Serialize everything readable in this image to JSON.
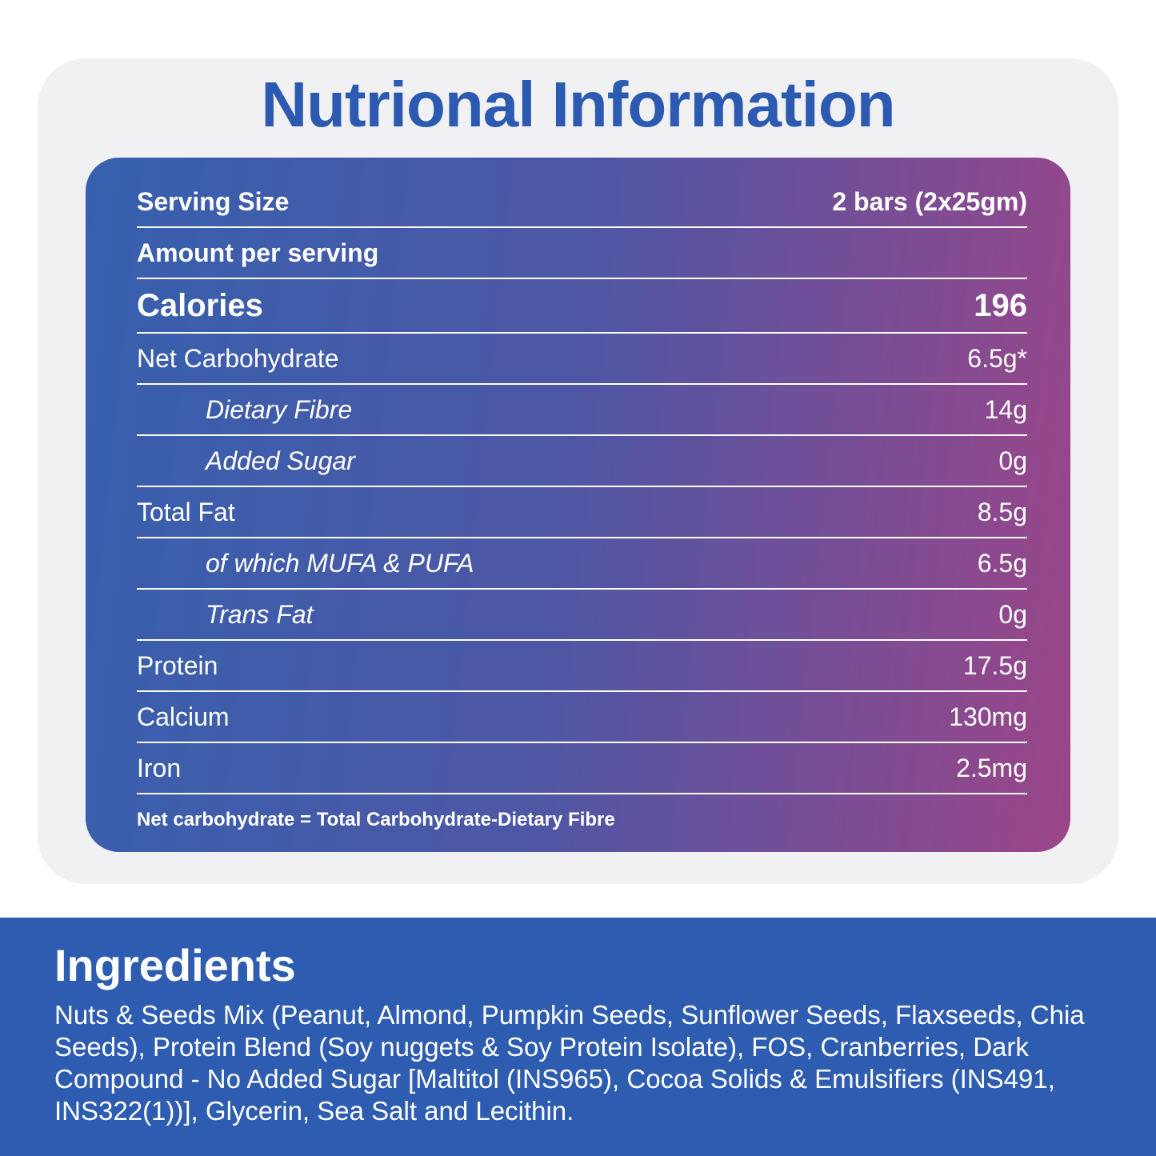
{
  "colors": {
    "page_bg": "#ffffff",
    "card_bg": "#f1f1f3",
    "title_blue": "#2d5ab1",
    "panel_gradient_start": "#3660ae",
    "panel_gradient_end": "#9c4588",
    "ingredients_band_blue": "#2e5cb0",
    "panel_text": "#ffffff"
  },
  "title": "Nutrional Information",
  "nutrition": {
    "rows": [
      {
        "label": "Serving Size",
        "value": "2 bars (2x25gm)"
      },
      {
        "label": "Amount per serving",
        "value": ""
      },
      {
        "label": "Calories",
        "value": "196"
      },
      {
        "label": "Net Carbohydrate",
        "value": "6.5g*"
      },
      {
        "label": "Dietary Fibre",
        "value": "14g"
      },
      {
        "label": "Added Sugar",
        "value": "0g"
      },
      {
        "label": "Total Fat",
        "value": "8.5g"
      },
      {
        "label": "of which MUFA & PUFA",
        "value": "6.5g"
      },
      {
        "label": "Trans Fat",
        "value": "0g"
      },
      {
        "label": "Protein",
        "value": "17.5g"
      },
      {
        "label": "Calcium",
        "value": "130mg"
      },
      {
        "label": "Iron",
        "value": "2.5mg"
      }
    ],
    "footnote": "Net carbohydrate = Total Carbohydrate-Dietary Fibre"
  },
  "ingredients": {
    "heading": "Ingredients",
    "text": "Nuts & Seeds Mix (Peanut, Almond, Pumpkin Seeds, Sunflower Seeds, Flaxseeds, Chia Seeds), Protein Blend (Soy nuggets & Soy Protein Isolate), FOS, Cranberries, Dark Compound - No Added Sugar [Maltitol (INS965), Cocoa Solids & Emulsifiers (INS491, INS322(1))], Glycerin, Sea Salt and Lecithin."
  }
}
